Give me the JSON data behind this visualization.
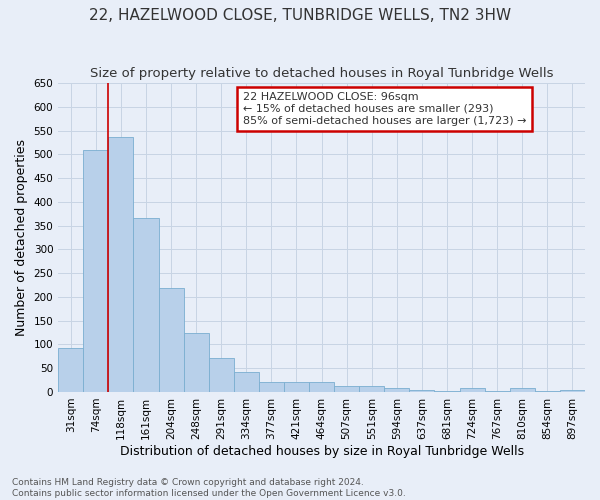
{
  "title": "22, HAZELWOOD CLOSE, TUNBRIDGE WELLS, TN2 3HW",
  "subtitle": "Size of property relative to detached houses in Royal Tunbridge Wells",
  "xlabel": "Distribution of detached houses by size in Royal Tunbridge Wells",
  "ylabel": "Number of detached properties",
  "footer_line1": "Contains HM Land Registry data © Crown copyright and database right 2024.",
  "footer_line2": "Contains public sector information licensed under the Open Government Licence v3.0.",
  "categories": [
    "31sqm",
    "74sqm",
    "118sqm",
    "161sqm",
    "204sqm",
    "248sqm",
    "291sqm",
    "334sqm",
    "377sqm",
    "421sqm",
    "464sqm",
    "507sqm",
    "551sqm",
    "594sqm",
    "637sqm",
    "681sqm",
    "724sqm",
    "767sqm",
    "810sqm",
    "854sqm",
    "897sqm"
  ],
  "values": [
    93,
    510,
    537,
    367,
    219,
    125,
    71,
    42,
    20,
    21,
    20,
    13,
    13,
    8,
    5,
    1,
    8,
    1,
    8,
    1,
    5
  ],
  "bar_color": "#b8d0ea",
  "bar_edge_color": "#7aaed0",
  "annotation_box_text": "22 HAZELWOOD CLOSE: 96sqm\n← 15% of detached houses are smaller (293)\n85% of semi-detached houses are larger (1,723) →",
  "annotation_box_color": "#ffffff",
  "annotation_box_edge_color": "#cc0000",
  "red_line_x": 1.5,
  "ylim": [
    0,
    650
  ],
  "yticks": [
    0,
    50,
    100,
    150,
    200,
    250,
    300,
    350,
    400,
    450,
    500,
    550,
    600,
    650
  ],
  "grid_color": "#c8d4e4",
  "bg_color": "#e8eef8",
  "title_fontsize": 11,
  "subtitle_fontsize": 9.5,
  "axis_label_fontsize": 9,
  "tick_fontsize": 7.5,
  "footer_fontsize": 6.5,
  "annotation_fontsize": 8
}
